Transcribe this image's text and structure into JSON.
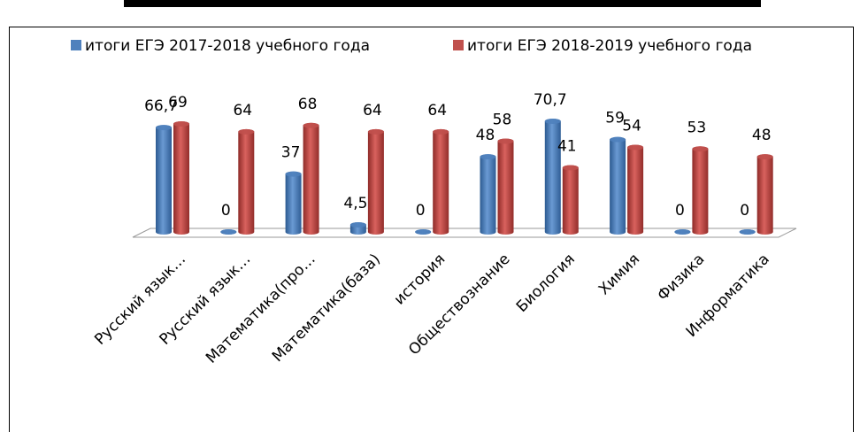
{
  "chart_data": {
    "type": "bar",
    "categories": [
      "Русский язык…",
      "Русский язык…",
      "Математика(про…",
      "Математика(база)",
      "история",
      "Обществознание",
      "Биология",
      "Химия",
      "Физика",
      "Информатика"
    ],
    "series": [
      {
        "name": "итоги ЕГЭ 2017-2018 учебного года",
        "color": "#4f81bd",
        "values": [
          66.7,
          0,
          37,
          4.5,
          0,
          48,
          70.7,
          59,
          0,
          0
        ],
        "value_labels": [
          "66,7",
          "0",
          "37",
          "4,5",
          "0",
          "48",
          "70,7",
          "59",
          "0",
          "0"
        ]
      },
      {
        "name": "итоги ЕГЭ 2018-2019 учебного года",
        "color": "#c0504d",
        "values": [
          69,
          64,
          68,
          64,
          64,
          58,
          41,
          54,
          53,
          48
        ]
      }
    ]
  }
}
